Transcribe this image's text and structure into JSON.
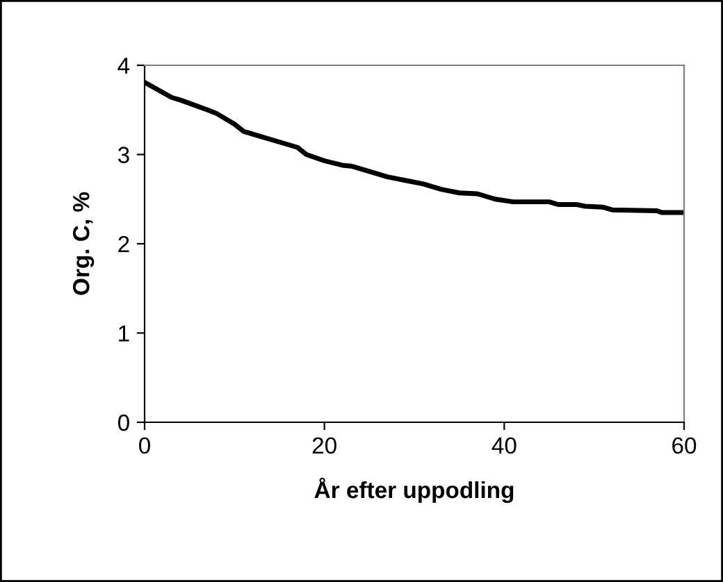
{
  "chart_data": {
    "type": "line",
    "xlabel": "År efter uppodling",
    "ylabel": "Org. C, %",
    "x": [
      0,
      3,
      4,
      7,
      8,
      10,
      11,
      13,
      15,
      17,
      18,
      20,
      22,
      23,
      25,
      27,
      29,
      31,
      33,
      35,
      37,
      39,
      41,
      45,
      46,
      48,
      49,
      51,
      52,
      57,
      57.5,
      60
    ],
    "series": [
      {
        "color": "#000000",
        "values": [
          3.81,
          3.64,
          3.61,
          3.5,
          3.46,
          3.34,
          3.26,
          3.2,
          3.14,
          3.08,
          3.0,
          2.93,
          2.88,
          2.87,
          2.81,
          2.75,
          2.71,
          2.67,
          2.61,
          2.57,
          2.56,
          2.5,
          2.47,
          2.47,
          2.44,
          2.44,
          2.42,
          2.41,
          2.38,
          2.37,
          2.35,
          2.35
        ]
      }
    ],
    "xlim": [
      0,
      60
    ],
    "xticks": [
      0,
      20,
      40,
      60
    ],
    "ylim": [
      0,
      4
    ],
    "yticks": [
      0,
      1,
      2,
      3,
      4
    ],
    "grid": false,
    "legend": false,
    "marker": "none",
    "line_style": "solid"
  }
}
